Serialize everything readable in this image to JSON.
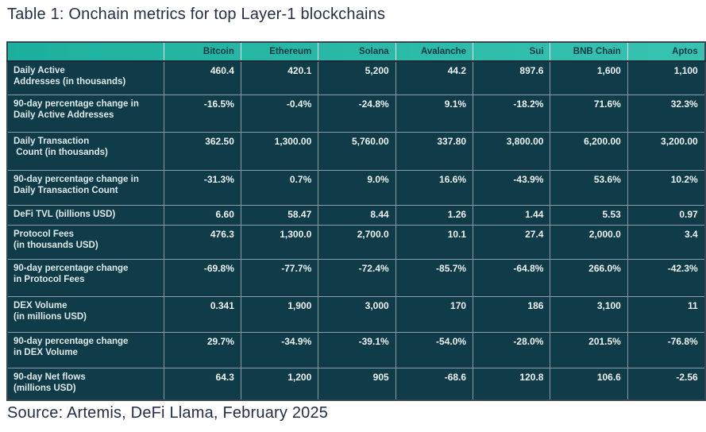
{
  "page": {
    "title": "Table 1: Onchain metrics for top Layer-1 blockchains",
    "source": "Source: Artemis, DeFi Llama, February 2025"
  },
  "colors": {
    "header_bg_left": "#1daf9d",
    "header_bg_right": "#38c3b1",
    "header_text": "#0d3845",
    "row_bg": "#0f3c48",
    "label_text": "#dfeae8",
    "value_text": "#eef3f1",
    "grid_line": "#8a9ba3",
    "outer_border": "#394550",
    "title_text": "#242e49"
  },
  "table": {
    "columns": [
      "",
      "Bitcoin",
      "Ethereum",
      "Solana",
      "Avalanche",
      "Sui",
      "BNB Chain",
      "Aptos"
    ],
    "rows": [
      {
        "label": [
          "Daily Active",
          "Addresses (in thousands)"
        ],
        "values": [
          "460.4",
          "420.1",
          "5,200",
          "44.2",
          "897.6",
          "1,600",
          "1,100"
        ]
      },
      {
        "label": [
          "90-day percentage change in",
          "Daily Active Addresses"
        ],
        "values": [
          "-16.5%",
          "-0.4%",
          "-24.8%",
          "9.1%",
          "-18.2%",
          "71.6%",
          "32.3%"
        ]
      },
      {
        "label": [
          "Daily Transaction",
          " Count (in thousands)"
        ],
        "values": [
          "362.50",
          "1,300.00",
          "5,760.00",
          "337.80",
          "3,800.00",
          "6,200.00",
          "3,200.00"
        ]
      },
      {
        "label": [
          "90-day percentage change in",
          "Daily Transaction Count"
        ],
        "values": [
          "-31.3%",
          "0.7%",
          "9.0%",
          "16.6%",
          "-43.9%",
          "53.6%",
          "10.2%"
        ]
      },
      {
        "label": [
          "DeFi TVL (billions USD)"
        ],
        "values": [
          "6.60",
          "58.47",
          "8.44",
          "1.26",
          "1.44",
          "5.53",
          "0.97"
        ]
      },
      {
        "label": [
          "Protocol Fees",
          "(in thousands USD)"
        ],
        "values": [
          "476.3",
          "1,300.0",
          "2,700.0",
          "10.1",
          "27.4",
          "2,000.0",
          "3.4"
        ]
      },
      {
        "label": [
          "90-day percentage change",
          "in Protocol Fees"
        ],
        "values": [
          "-69.8%",
          "-77.7%",
          "-72.4%",
          "-85.7%",
          "-64.8%",
          "266.0%",
          "-42.3%"
        ]
      },
      {
        "label": [
          "DEX Volume",
          "(in millions USD)"
        ],
        "values": [
          "0.341",
          "1,900",
          "3,000",
          "170",
          "186",
          "3,100",
          "11"
        ]
      },
      {
        "label": [
          "90-day percentage change",
          "in DEX Volume"
        ],
        "values": [
          "29.7%",
          "-34.9%",
          "-39.1%",
          "-54.0%",
          "-28.0%",
          "201.5%",
          "-76.8%"
        ]
      },
      {
        "label": [
          "90-day Net flows",
          "(millions USD)"
        ],
        "values": [
          "64.3",
          "1,200",
          "905",
          "-68.6",
          "120.8",
          "106.6",
          "-2.56"
        ]
      }
    ]
  }
}
